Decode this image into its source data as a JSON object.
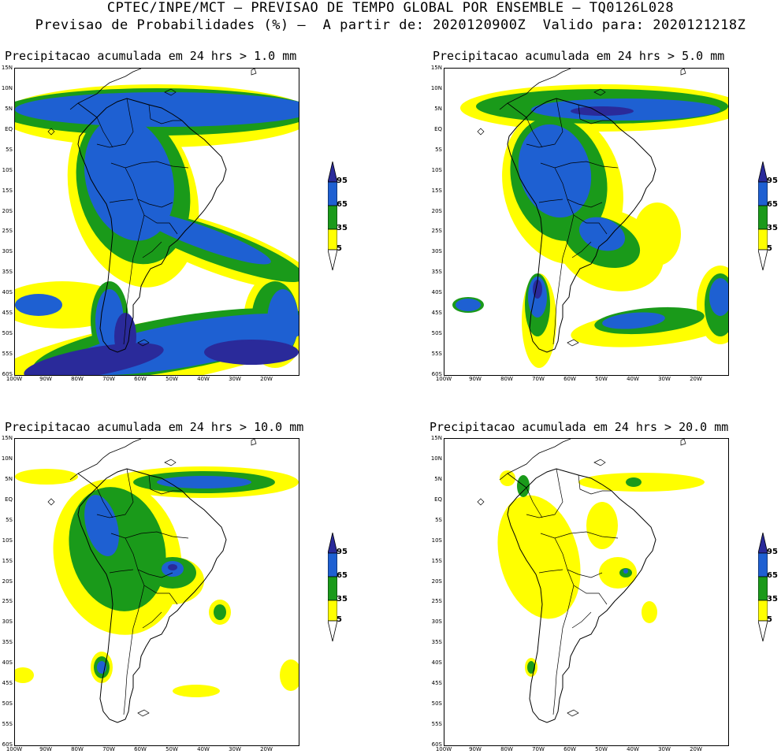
{
  "header": {
    "line1": "CPTEC/INPE/MCT – PREVISAO DE TEMPO GLOBAL POR ENSEMBLE – TQ0126L028",
    "line2": "Previsao de Probabilidades (%) –  A partir de: 2020120900Z  Valido para: 2020121218Z"
  },
  "axes": {
    "lat_labels": [
      "15N",
      "10N",
      "5N",
      "EQ",
      "5S",
      "10S",
      "15S",
      "20S",
      "25S",
      "30S",
      "35S",
      "40S",
      "45S",
      "50S",
      "55S",
      "60S"
    ],
    "lon_labels": [
      "100W",
      "90W",
      "80W",
      "70W",
      "60W",
      "50W",
      "40W",
      "30W",
      "20W"
    ]
  },
  "legend": {
    "levels": [
      "95",
      "65",
      "35",
      "5"
    ],
    "colors": [
      "#2a2a9a",
      "#1e60d2",
      "#1a9a1a",
      "#ffff00"
    ]
  },
  "panels": [
    {
      "title": "Precipitacao acumulada em 24 hrs > 1.0 mm"
    },
    {
      "title": "Precipitacao acumulada em 24 hrs > 5.0 mm"
    },
    {
      "title": "Precipitacao acumulada em 24 hrs > 10.0 mm"
    },
    {
      "title": "Precipitacao acumulada em 24 hrs > 20.0 mm"
    }
  ]
}
